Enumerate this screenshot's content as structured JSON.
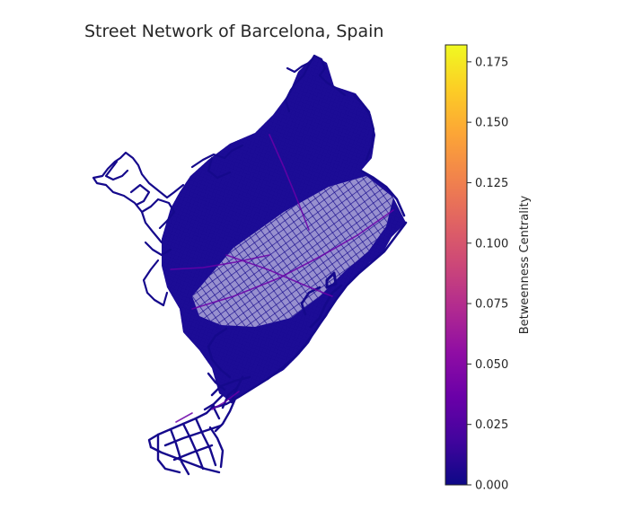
{
  "chart_data": {
    "type": "map",
    "title": "Street Network of Barcelona, Spain",
    "colormap": "plasma",
    "colors": {
      "network_base": "#15098c",
      "network_dense": "#0d0887",
      "network_highlight": "#6a00a8",
      "colorbar_stops": [
        "#0d0887",
        "#41049d",
        "#6a00a8",
        "#8f0da4",
        "#b12a90",
        "#cc4778",
        "#e16462",
        "#f2844b",
        "#fca636",
        "#fcce25",
        "#f0f921"
      ]
    },
    "colorbar": {
      "label": "Betweenness Centrality",
      "range": [
        0.0,
        0.182
      ],
      "ticks": [
        {
          "value": 0.0,
          "label": "0.000"
        },
        {
          "value": 0.025,
          "label": "0.025"
        },
        {
          "value": 0.05,
          "label": "0.050"
        },
        {
          "value": 0.075,
          "label": "0.075"
        },
        {
          "value": 0.1,
          "label": "0.100"
        },
        {
          "value": 0.125,
          "label": "0.125"
        },
        {
          "value": 0.15,
          "label": "0.150"
        },
        {
          "value": 0.175,
          "label": "0.175"
        }
      ]
    }
  }
}
